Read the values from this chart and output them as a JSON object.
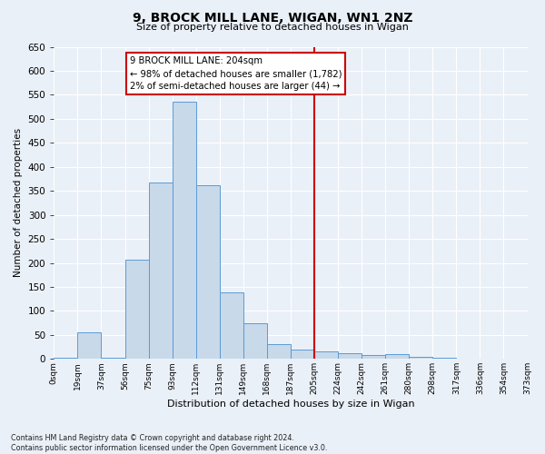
{
  "title": "9, BROCK MILL LANE, WIGAN, WN1 2NZ",
  "subtitle": "Size of property relative to detached houses in Wigan",
  "xlabel": "Distribution of detached houses by size in Wigan",
  "ylabel": "Number of detached properties",
  "bin_labels": [
    "0sqm",
    "19sqm",
    "37sqm",
    "56sqm",
    "75sqm",
    "93sqm",
    "112sqm",
    "131sqm",
    "149sqm",
    "168sqm",
    "187sqm",
    "205sqm",
    "224sqm",
    "242sqm",
    "261sqm",
    "280sqm",
    "298sqm",
    "317sqm",
    "336sqm",
    "354sqm",
    "373sqm"
  ],
  "n_bins": 20,
  "bar_heights": [
    3,
    55,
    3,
    207,
    368,
    535,
    362,
    139,
    75,
    30,
    20,
    15,
    12,
    8,
    10,
    5,
    3,
    1,
    0,
    0
  ],
  "bar_color": "#c8d9ea",
  "bar_edge_color": "#5b9bd5",
  "vline_bin": 11,
  "vline_color": "#cc0000",
  "annotation_title": "9 BROCK MILL LANE: 204sqm",
  "annotation_line1": "← 98% of detached houses are smaller (1,782)",
  "annotation_line2": "2% of semi-detached houses are larger (44) →",
  "annotation_box_color": "#cc0000",
  "ylim": [
    0,
    650
  ],
  "yticks": [
    0,
    50,
    100,
    150,
    200,
    250,
    300,
    350,
    400,
    450,
    500,
    550,
    600,
    650
  ],
  "background_color": "#eaf0f8",
  "plot_bg_color": "#eaf0f8",
  "grid_color": "#ffffff",
  "footer_line1": "Contains HM Land Registry data © Crown copyright and database right 2024.",
  "footer_line2": "Contains public sector information licensed under the Open Government Licence v3.0."
}
